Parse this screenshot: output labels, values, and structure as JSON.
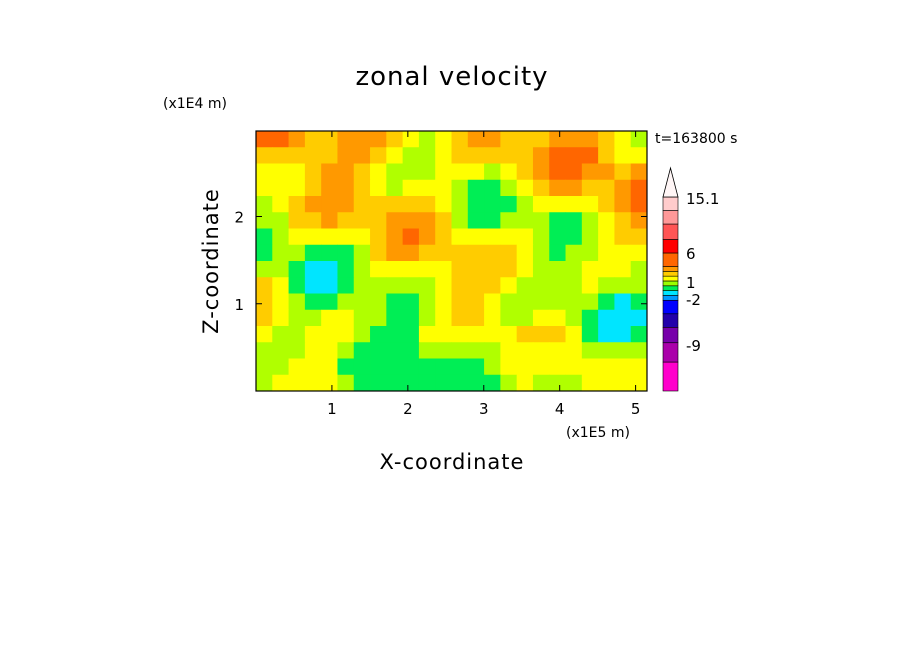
{
  "chart_data": {
    "type": "heatmap",
    "title": "zonal velocity",
    "xlabel": "X-coordinate",
    "ylabel": "Z-coordinate",
    "x_unit_label": "(x1E5 m)",
    "y_unit_label": "(x1E4 m)",
    "time_label": "t=163800 s",
    "xlim": [
      0,
      5.15
    ],
    "ylim": [
      0,
      2.98
    ],
    "x_ticks": [
      1,
      2,
      3,
      4,
      5
    ],
    "y_ticks": [
      1,
      2
    ],
    "colorbar": {
      "levels": [
        {
          "color": "#ff00cc"
        },
        {
          "color": "#aa00aa"
        },
        {
          "color": "#7700aa"
        },
        {
          "color": "#2200aa"
        },
        {
          "color": "#0000ff"
        },
        {
          "color": "#0099ff"
        },
        {
          "color": "#00e5ff"
        },
        {
          "color": "#00ee55"
        },
        {
          "color": "#99ff00"
        },
        {
          "color": "#ffff00"
        },
        {
          "color": "#ffcc00"
        },
        {
          "color": "#ff9900"
        },
        {
          "color": "#ff6600"
        },
        {
          "color": "#ff0000"
        },
        {
          "color": "#ff5555"
        },
        {
          "color": "#ff9999"
        },
        {
          "color": "#ffcccc"
        }
      ],
      "labels": [
        "15.1",
        "6",
        "1",
        "-2",
        "-9"
      ]
    }
  }
}
